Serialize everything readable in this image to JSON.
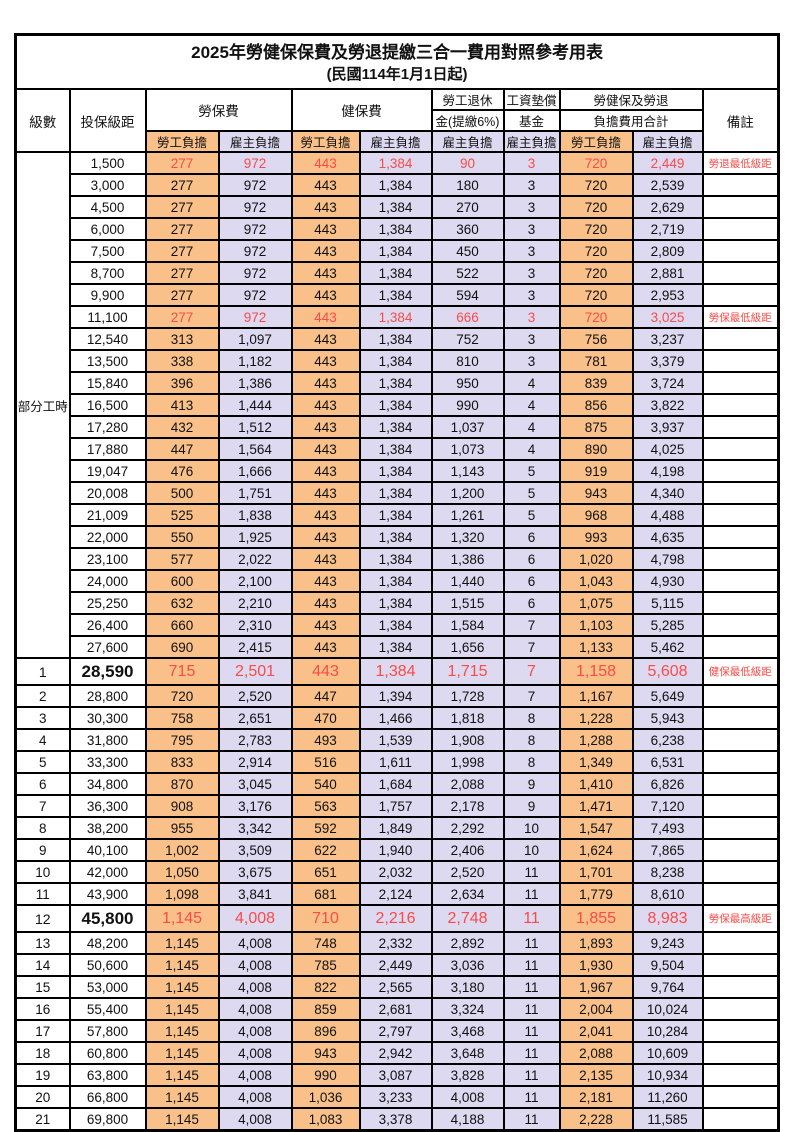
{
  "title": "2025年勞健保保費及勞退提繳三合一費用對照參考用表",
  "subtitle": "(民國114年1月1日起)",
  "header": {
    "level": "級數",
    "bracket": "投保級距",
    "labor_insurance": "勞保費",
    "health_insurance": "健保費",
    "pension_line1": "勞工退休",
    "pension_line2": "金(提繳6%)",
    "wage_fund_line1": "工資墊償",
    "wage_fund_line2": "基金",
    "total_line1": "勞健保及勞退",
    "total_line2": "負擔費用合計",
    "note": "備註",
    "employee_share": "勞工負擔",
    "employer_share": "雇主負擔"
  },
  "part_time_label": "部分工時",
  "colors": {
    "employee_fill": "#f9c189",
    "employer_fill": "#dcd9f0",
    "highlight_red": "#fb4b47",
    "grid": "#000000"
  },
  "rows": [
    {
      "level": "",
      "bracket": "1,500",
      "values": [
        "277",
        "972",
        "443",
        "1,384",
        "90",
        "3",
        "720",
        "2,449"
      ],
      "note": "勞退最低級距",
      "red": true,
      "special": false
    },
    {
      "level": "",
      "bracket": "3,000",
      "values": [
        "277",
        "972",
        "443",
        "1,384",
        "180",
        "3",
        "720",
        "2,539"
      ],
      "note": "",
      "red": false,
      "special": false
    },
    {
      "level": "",
      "bracket": "4,500",
      "values": [
        "277",
        "972",
        "443",
        "1,384",
        "270",
        "3",
        "720",
        "2,629"
      ],
      "note": "",
      "red": false,
      "special": false
    },
    {
      "level": "",
      "bracket": "6,000",
      "values": [
        "277",
        "972",
        "443",
        "1,384",
        "360",
        "3",
        "720",
        "2,719"
      ],
      "note": "",
      "red": false,
      "special": false
    },
    {
      "level": "",
      "bracket": "7,500",
      "values": [
        "277",
        "972",
        "443",
        "1,384",
        "450",
        "3",
        "720",
        "2,809"
      ],
      "note": "",
      "red": false,
      "special": false
    },
    {
      "level": "",
      "bracket": "8,700",
      "values": [
        "277",
        "972",
        "443",
        "1,384",
        "522",
        "3",
        "720",
        "2,881"
      ],
      "note": "",
      "red": false,
      "special": false
    },
    {
      "level": "",
      "bracket": "9,900",
      "values": [
        "277",
        "972",
        "443",
        "1,384",
        "594",
        "3",
        "720",
        "2,953"
      ],
      "note": "",
      "red": false,
      "special": false
    },
    {
      "level": "",
      "bracket": "11,100",
      "values": [
        "277",
        "972",
        "443",
        "1,384",
        "666",
        "3",
        "720",
        "3,025"
      ],
      "note": "勞保最低級距",
      "red": true,
      "special": false
    },
    {
      "level": "",
      "bracket": "12,540",
      "values": [
        "313",
        "1,097",
        "443",
        "1,384",
        "752",
        "3",
        "756",
        "3,237"
      ],
      "note": "",
      "red": false,
      "special": false
    },
    {
      "level": "",
      "bracket": "13,500",
      "values": [
        "338",
        "1,182",
        "443",
        "1,384",
        "810",
        "3",
        "781",
        "3,379"
      ],
      "note": "",
      "red": false,
      "special": false
    },
    {
      "level": "",
      "bracket": "15,840",
      "values": [
        "396",
        "1,386",
        "443",
        "1,384",
        "950",
        "4",
        "839",
        "3,724"
      ],
      "note": "",
      "red": false,
      "special": false
    },
    {
      "level": "",
      "bracket": "16,500",
      "values": [
        "413",
        "1,444",
        "443",
        "1,384",
        "990",
        "4",
        "856",
        "3,822"
      ],
      "note": "",
      "red": false,
      "special": false
    },
    {
      "level": "",
      "bracket": "17,280",
      "values": [
        "432",
        "1,512",
        "443",
        "1,384",
        "1,037",
        "4",
        "875",
        "3,937"
      ],
      "note": "",
      "red": false,
      "special": false
    },
    {
      "level": "",
      "bracket": "17,880",
      "values": [
        "447",
        "1,564",
        "443",
        "1,384",
        "1,073",
        "4",
        "890",
        "4,025"
      ],
      "note": "",
      "red": false,
      "special": false
    },
    {
      "level": "",
      "bracket": "19,047",
      "values": [
        "476",
        "1,666",
        "443",
        "1,384",
        "1,143",
        "5",
        "919",
        "4,198"
      ],
      "note": "",
      "red": false,
      "special": false
    },
    {
      "level": "",
      "bracket": "20,008",
      "values": [
        "500",
        "1,751",
        "443",
        "1,384",
        "1,200",
        "5",
        "943",
        "4,340"
      ],
      "note": "",
      "red": false,
      "special": false
    },
    {
      "level": "",
      "bracket": "21,009",
      "values": [
        "525",
        "1,838",
        "443",
        "1,384",
        "1,261",
        "5",
        "968",
        "4,488"
      ],
      "note": "",
      "red": false,
      "special": false
    },
    {
      "level": "",
      "bracket": "22,000",
      "values": [
        "550",
        "1,925",
        "443",
        "1,384",
        "1,320",
        "6",
        "993",
        "4,635"
      ],
      "note": "",
      "red": false,
      "special": false
    },
    {
      "level": "",
      "bracket": "23,100",
      "values": [
        "577",
        "2,022",
        "443",
        "1,384",
        "1,386",
        "6",
        "1,020",
        "4,798"
      ],
      "note": "",
      "red": false,
      "special": false
    },
    {
      "level": "",
      "bracket": "24,000",
      "values": [
        "600",
        "2,100",
        "443",
        "1,384",
        "1,440",
        "6",
        "1,043",
        "4,930"
      ],
      "note": "",
      "red": false,
      "special": false
    },
    {
      "level": "",
      "bracket": "25,250",
      "values": [
        "632",
        "2,210",
        "443",
        "1,384",
        "1,515",
        "6",
        "1,075",
        "5,115"
      ],
      "note": "",
      "red": false,
      "special": false
    },
    {
      "level": "",
      "bracket": "26,400",
      "values": [
        "660",
        "2,310",
        "443",
        "1,384",
        "1,584",
        "7",
        "1,103",
        "5,285"
      ],
      "note": "",
      "red": false,
      "special": false
    },
    {
      "level": "",
      "bracket": "27,600",
      "values": [
        "690",
        "2,415",
        "443",
        "1,384",
        "1,656",
        "7",
        "1,133",
        "5,462"
      ],
      "note": "",
      "red": false,
      "special": false
    },
    {
      "level": "1",
      "bracket": "28,590",
      "values": [
        "715",
        "2,501",
        "443",
        "1,384",
        "1,715",
        "7",
        "1,158",
        "5,608"
      ],
      "note": "健保最低級距",
      "red": true,
      "special": true
    },
    {
      "level": "2",
      "bracket": "28,800",
      "values": [
        "720",
        "2,520",
        "447",
        "1,394",
        "1,728",
        "7",
        "1,167",
        "5,649"
      ],
      "note": "",
      "red": false,
      "special": false
    },
    {
      "level": "3",
      "bracket": "30,300",
      "values": [
        "758",
        "2,651",
        "470",
        "1,466",
        "1,818",
        "8",
        "1,228",
        "5,943"
      ],
      "note": "",
      "red": false,
      "special": false
    },
    {
      "level": "4",
      "bracket": "31,800",
      "values": [
        "795",
        "2,783",
        "493",
        "1,539",
        "1,908",
        "8",
        "1,288",
        "6,238"
      ],
      "note": "",
      "red": false,
      "special": false
    },
    {
      "level": "5",
      "bracket": "33,300",
      "values": [
        "833",
        "2,914",
        "516",
        "1,611",
        "1,998",
        "8",
        "1,349",
        "6,531"
      ],
      "note": "",
      "red": false,
      "special": false
    },
    {
      "level": "6",
      "bracket": "34,800",
      "values": [
        "870",
        "3,045",
        "540",
        "1,684",
        "2,088",
        "9",
        "1,410",
        "6,826"
      ],
      "note": "",
      "red": false,
      "special": false
    },
    {
      "level": "7",
      "bracket": "36,300",
      "values": [
        "908",
        "3,176",
        "563",
        "1,757",
        "2,178",
        "9",
        "1,471",
        "7,120"
      ],
      "note": "",
      "red": false,
      "special": false
    },
    {
      "level": "8",
      "bracket": "38,200",
      "values": [
        "955",
        "3,342",
        "592",
        "1,849",
        "2,292",
        "10",
        "1,547",
        "7,493"
      ],
      "note": "",
      "red": false,
      "special": false
    },
    {
      "level": "9",
      "bracket": "40,100",
      "values": [
        "1,002",
        "3,509",
        "622",
        "1,940",
        "2,406",
        "10",
        "1,624",
        "7,865"
      ],
      "note": "",
      "red": false,
      "special": false
    },
    {
      "level": "10",
      "bracket": "42,000",
      "values": [
        "1,050",
        "3,675",
        "651",
        "2,032",
        "2,520",
        "11",
        "1,701",
        "8,238"
      ],
      "note": "",
      "red": false,
      "special": false
    },
    {
      "level": "11",
      "bracket": "43,900",
      "values": [
        "1,098",
        "3,841",
        "681",
        "2,124",
        "2,634",
        "11",
        "1,779",
        "8,610"
      ],
      "note": "",
      "red": false,
      "special": false
    },
    {
      "level": "12",
      "bracket": "45,800",
      "values": [
        "1,145",
        "4,008",
        "710",
        "2,216",
        "2,748",
        "11",
        "1,855",
        "8,983"
      ],
      "note": "勞保最高級距",
      "red": true,
      "special": true
    },
    {
      "level": "13",
      "bracket": "48,200",
      "values": [
        "1,145",
        "4,008",
        "748",
        "2,332",
        "2,892",
        "11",
        "1,893",
        "9,243"
      ],
      "note": "",
      "red": false,
      "special": false
    },
    {
      "level": "14",
      "bracket": "50,600",
      "values": [
        "1,145",
        "4,008",
        "785",
        "2,449",
        "3,036",
        "11",
        "1,930",
        "9,504"
      ],
      "note": "",
      "red": false,
      "special": false
    },
    {
      "level": "15",
      "bracket": "53,000",
      "values": [
        "1,145",
        "4,008",
        "822",
        "2,565",
        "3,180",
        "11",
        "1,967",
        "9,764"
      ],
      "note": "",
      "red": false,
      "special": false
    },
    {
      "level": "16",
      "bracket": "55,400",
      "values": [
        "1,145",
        "4,008",
        "859",
        "2,681",
        "3,324",
        "11",
        "2,004",
        "10,024"
      ],
      "note": "",
      "red": false,
      "special": false
    },
    {
      "level": "17",
      "bracket": "57,800",
      "values": [
        "1,145",
        "4,008",
        "896",
        "2,797",
        "3,468",
        "11",
        "2,041",
        "10,284"
      ],
      "note": "",
      "red": false,
      "special": false
    },
    {
      "level": "18",
      "bracket": "60,800",
      "values": [
        "1,145",
        "4,008",
        "943",
        "2,942",
        "3,648",
        "11",
        "2,088",
        "10,609"
      ],
      "note": "",
      "red": false,
      "special": false
    },
    {
      "level": "19",
      "bracket": "63,800",
      "values": [
        "1,145",
        "4,008",
        "990",
        "3,087",
        "3,828",
        "11",
        "2,135",
        "10,934"
      ],
      "note": "",
      "red": false,
      "special": false
    },
    {
      "level": "20",
      "bracket": "66,800",
      "values": [
        "1,145",
        "4,008",
        "1,036",
        "3,233",
        "4,008",
        "11",
        "2,181",
        "11,260"
      ],
      "note": "",
      "red": false,
      "special": false
    },
    {
      "level": "21",
      "bracket": "69,800",
      "values": [
        "1,145",
        "4,008",
        "1,083",
        "3,378",
        "4,188",
        "11",
        "2,228",
        "11,585"
      ],
      "note": "",
      "red": false,
      "special": false
    }
  ]
}
